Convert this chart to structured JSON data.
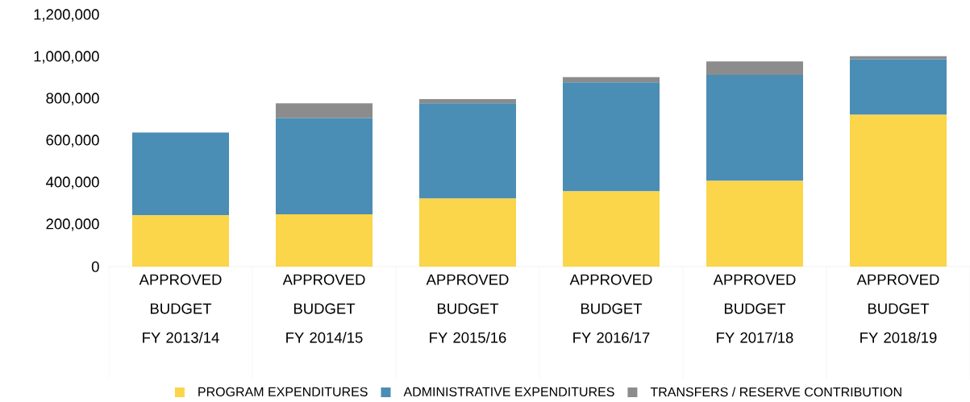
{
  "chart_data": {
    "type": "bar",
    "stacked": true,
    "legend": "bottom",
    "categories": [
      "APPROVED BUDGET FY 2013/14",
      "APPROVED BUDGET FY 2014/15",
      "APPROVED BUDGET FY 2015/16",
      "APPROVED BUDGET FY 2016/17",
      "APPROVED BUDGET FY 2017/18",
      "APPROVED BUDGET FY 2018/19"
    ],
    "series": [
      {
        "name": "PROGRAM EXPENDITURES",
        "color": "#fbd54a",
        "values": [
          245000,
          250000,
          325000,
          360000,
          410000,
          725000
        ]
      },
      {
        "name": "ADMINISTRATIVE EXPENDITURES",
        "color": "#4a8db5",
        "values": [
          395000,
          460000,
          455000,
          520000,
          505000,
          265000
        ]
      },
      {
        "name": "TRANSFERS / RESERVE CONTRIBUTION",
        "color": "#8c8c8c",
        "values": [
          0,
          70000,
          20000,
          25000,
          65000,
          15000
        ]
      }
    ],
    "ylim": [
      0,
      1200000
    ],
    "yticks": [
      0,
      {
        "value": 200000,
        "label": "200,000"
      },
      {
        "value": 400000,
        "label": "400,000"
      },
      {
        "value": 600000,
        "label": "600,000"
      },
      {
        "value": 800000,
        "label": "800,000"
      },
      {
        "value": 1000000,
        "label": "1,000,000"
      },
      {
        "value": 1200000,
        "label": "1,200,000"
      }
    ]
  }
}
